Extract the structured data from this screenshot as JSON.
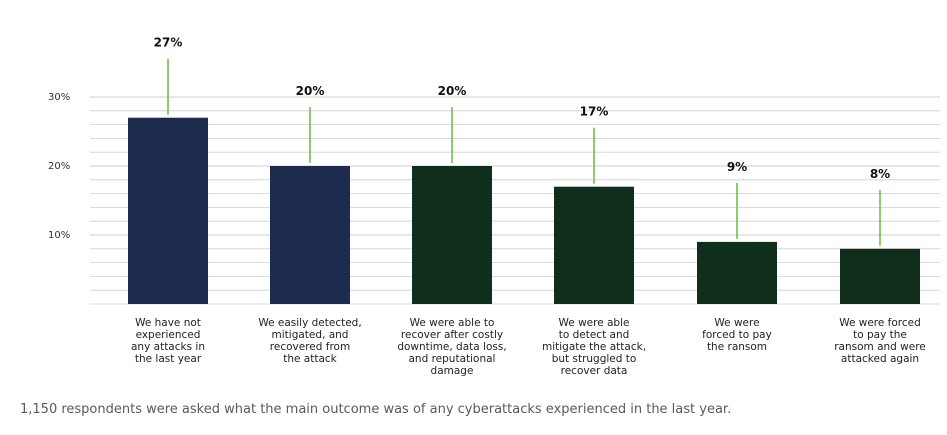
{
  "chart_data": {
    "type": "bar",
    "title": "",
    "xlabel": "",
    "ylabel": "",
    "ylim": [
      0,
      30
    ],
    "yticks": [
      10,
      20,
      30
    ],
    "ytick_labels": [
      "10%",
      "20%",
      "30%"
    ],
    "grid": true,
    "categories": [
      [
        "We have not",
        "experienced",
        "any attacks in",
        "the last year"
      ],
      [
        "We easily detected,",
        "mitigated, and",
        "recovered from",
        "the attack"
      ],
      [
        "We were able to",
        "recover after costly",
        "downtime, data loss,",
        "and reputational",
        "damage"
      ],
      [
        "We were able",
        "to detect and",
        "mitigate the attack,",
        "but struggled to",
        "recover data"
      ],
      [
        "We were",
        "forced to pay",
        "the ransom"
      ],
      [
        "We were forced",
        "to pay the",
        "ransom and were",
        "attacked again"
      ]
    ],
    "values": [
      27,
      20,
      20,
      17,
      9,
      8
    ],
    "value_labels": [
      "27%",
      "20%",
      "20%",
      "17%",
      "9%",
      "8%"
    ],
    "bar_colors": [
      "#1c2b4e",
      "#1c2b4e",
      "#0f2e1c",
      "#0f2e1c",
      "#0f2e1c",
      "#0f2e1c"
    ],
    "leader_color": "#6cc24a",
    "grid_color": "#cfcfcf"
  },
  "footnote": "1,150 respondents were asked what the main outcome was of any cyberattacks experienced in the last year."
}
